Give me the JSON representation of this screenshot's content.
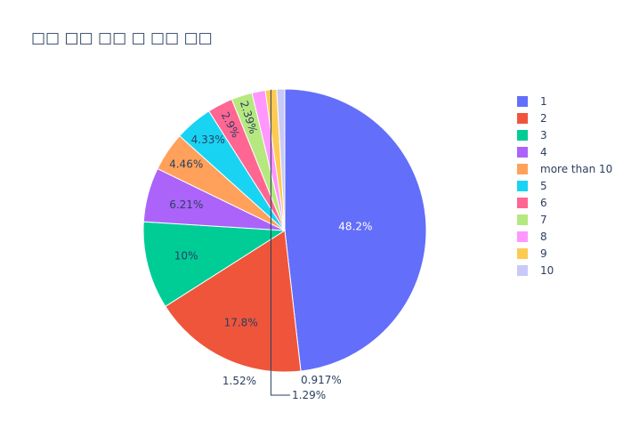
{
  "chart_data": {
    "type": "pie",
    "title": "□□ □□ □□ □ □□ □□",
    "slices": [
      {
        "label": "1",
        "value": 48.2,
        "text": "48.2%",
        "color": "#636efa"
      },
      {
        "label": "2",
        "value": 17.8,
        "text": "17.8%",
        "color": "#EF553B"
      },
      {
        "label": "3",
        "value": 10.0,
        "text": "10%",
        "color": "#00cc96"
      },
      {
        "label": "4",
        "value": 6.21,
        "text": "6.21%",
        "color": "#ab63fa"
      },
      {
        "label": "more than 10",
        "value": 4.46,
        "text": "4.46%",
        "color": "#FFA15A"
      },
      {
        "label": "5",
        "value": 4.33,
        "text": "4.33%",
        "color": "#19d3f3"
      },
      {
        "label": "6",
        "value": 2.9,
        "text": "2.9%",
        "color": "#FF6692"
      },
      {
        "label": "7",
        "value": 2.39,
        "text": "2.39%",
        "color": "#B6E880"
      },
      {
        "label": "8",
        "value": 1.52,
        "text": "1.52%",
        "color": "#FF97FF"
      },
      {
        "label": "9",
        "value": 1.29,
        "text": "1.29%",
        "color": "#FECB52"
      },
      {
        "label": "10",
        "value": 0.917,
        "text": "0.917%",
        "color": "#c8c9f7"
      }
    ],
    "direction": "clockwise",
    "start": "top",
    "legend_position": "right"
  }
}
